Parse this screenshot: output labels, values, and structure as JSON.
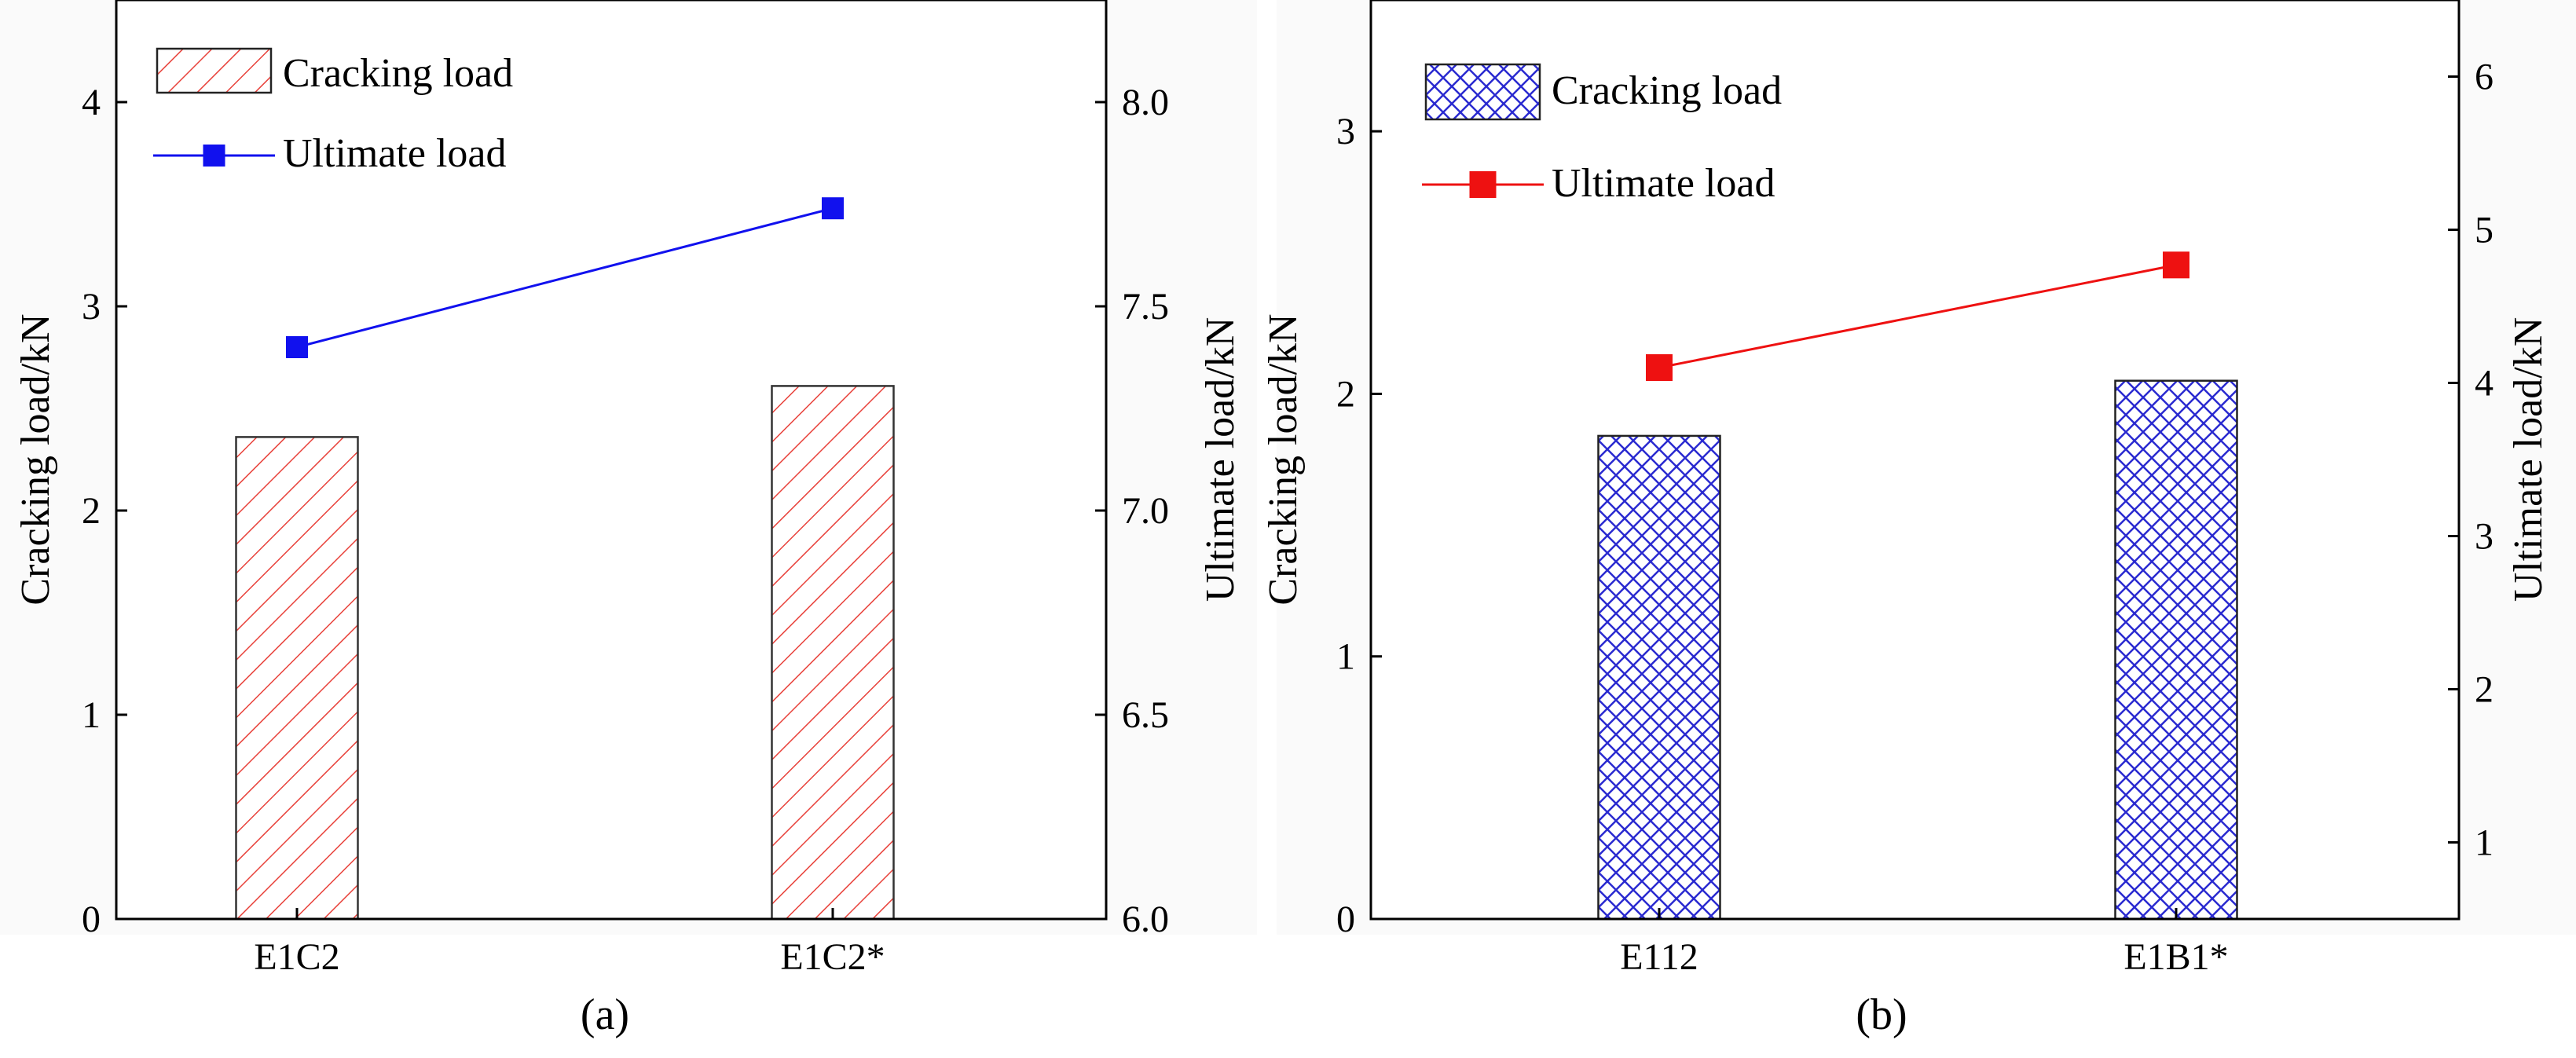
{
  "chart_data": [
    {
      "type": "bar+line",
      "panel_label": "(a)",
      "categories": [
        "E1C2",
        "E1C2*"
      ],
      "bar_series": {
        "name": "Cracking load",
        "values": [
          2.36,
          2.61
        ],
        "color": "#e8413a",
        "pattern": "diagonal-hatch"
      },
      "line_series": {
        "name": "Ultimate load",
        "values": [
          7.4,
          7.74
        ],
        "color": "#1111ee",
        "marker": "square"
      },
      "ylabel_left": "Cracking load/kN",
      "ylabel_right": "Ultimate load/kN",
      "ylim_left": [
        0,
        4.5
      ],
      "ylim_right": [
        6.0,
        8.25
      ],
      "yticks_left": [
        "0",
        "1",
        "2",
        "3",
        "4"
      ],
      "yticks_right": [
        "6.0",
        "6.5",
        "7.0",
        "7.5",
        "8.0"
      ],
      "legend_position": "top-left"
    },
    {
      "type": "bar+line",
      "panel_label": "(b)",
      "categories": [
        "E112",
        "E1B1*"
      ],
      "bar_series": {
        "name": "Cracking load",
        "values": [
          1.84,
          2.05
        ],
        "color": "#2a2ad0",
        "pattern": "crosshatch"
      },
      "line_series": {
        "name": "Ultimate load",
        "values": [
          4.1,
          4.77
        ],
        "color": "#ee1111",
        "marker": "square"
      },
      "ylabel_left": "Cracking load/kN",
      "ylabel_right": "Ultimate load/kN",
      "ylim_left": [
        0,
        3.5
      ],
      "ylim_right": [
        0.5,
        6.5
      ],
      "yticks_left": [
        "0",
        "1",
        "2",
        "3"
      ],
      "yticks_right": [
        "1",
        "2",
        "3",
        "4",
        "5",
        "6"
      ],
      "legend_position": "top-left"
    }
  ]
}
